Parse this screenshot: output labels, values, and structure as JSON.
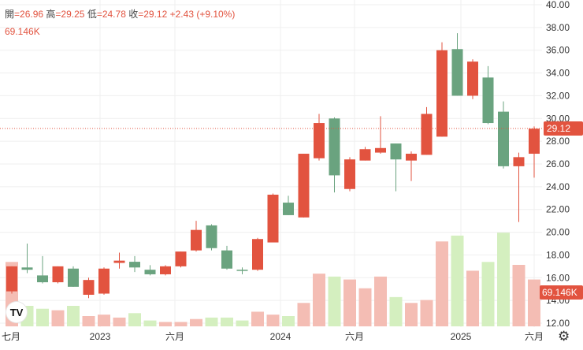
{
  "legend": {
    "open_label": "開",
    "open": "=26.96",
    "high_label": "高",
    "high": "=29.25",
    "low_label": "低",
    "low": "=24.78",
    "close_label": "收",
    "close": "=29.12",
    "change": "+2.43 (+9.10%)",
    "volume": "69.146K"
  },
  "logo_text": "TV",
  "settings_icon": "gear-icon",
  "colors": {
    "up": "#e2533f",
    "down": "#6aa37f",
    "up_vol": "#f4bdb4",
    "down_vol": "#d4efbf",
    "grid": "#efefef"
  },
  "chart_data": {
    "type": "candlestick",
    "price_range": [
      12,
      40
    ],
    "y_ticks": [
      "12.00",
      "14.00",
      "16.00",
      "18.00",
      "20.00",
      "22.00",
      "24.00",
      "26.00",
      "28.00",
      "30.00",
      "32.00",
      "34.00",
      "36.00",
      "38.00",
      "40.00"
    ],
    "x_ticks": [
      "七月",
      "2023",
      "六月",
      "2024",
      "六月",
      "2025",
      "六月"
    ],
    "last_price": "29.12",
    "last_volume": "69.146K",
    "candles": [
      {
        "o": 14.8,
        "h": 17.0,
        "l": 14.6,
        "c": 17.0,
        "v": 22
      },
      {
        "o": 16.9,
        "h": 19.0,
        "l": 16.4,
        "c": 16.7,
        "v": 7
      },
      {
        "o": 16.2,
        "h": 17.9,
        "l": 15.5,
        "c": 15.6,
        "v": 6
      },
      {
        "o": 15.6,
        "h": 17.0,
        "l": 15.5,
        "c": 17.0,
        "v": 5.5
      },
      {
        "o": 16.8,
        "h": 17.0,
        "l": 15.2,
        "c": 15.2,
        "v": 7
      },
      {
        "o": 14.5,
        "h": 16.0,
        "l": 14.2,
        "c": 15.8,
        "v": 3.5
      },
      {
        "o": 14.6,
        "h": 16.9,
        "l": 14.5,
        "c": 16.8,
        "v": 4
      },
      {
        "o": 17.3,
        "h": 18.2,
        "l": 16.8,
        "c": 17.5,
        "v": 3
      },
      {
        "o": 17.4,
        "h": 17.9,
        "l": 16.5,
        "c": 16.9,
        "v": 4.5
      },
      {
        "o": 16.7,
        "h": 17.1,
        "l": 16.2,
        "c": 16.3,
        "v": 2
      },
      {
        "o": 16.3,
        "h": 17.1,
        "l": 16.2,
        "c": 17.0,
        "v": 1.5
      },
      {
        "o": 17.0,
        "h": 18.3,
        "l": 16.9,
        "c": 18.3,
        "v": 1.5
      },
      {
        "o": 18.4,
        "h": 21.0,
        "l": 18.3,
        "c": 20.2,
        "v": 2.5
      },
      {
        "o": 20.6,
        "h": 20.7,
        "l": 18.4,
        "c": 18.6,
        "v": 3
      },
      {
        "o": 18.4,
        "h": 18.8,
        "l": 16.7,
        "c": 16.8,
        "v": 3
      },
      {
        "o": 16.7,
        "h": 16.9,
        "l": 16.3,
        "c": 16.6,
        "v": 2
      },
      {
        "o": 16.7,
        "h": 19.5,
        "l": 16.6,
        "c": 19.4,
        "v": 5
      },
      {
        "o": 19.1,
        "h": 23.4,
        "l": 19.1,
        "c": 23.3,
        "v": 4
      },
      {
        "o": 22.6,
        "h": 23.2,
        "l": 21.5,
        "c": 21.5,
        "v": 3.5
      },
      {
        "o": 21.3,
        "h": 26.9,
        "l": 21.3,
        "c": 26.9,
        "v": 8
      },
      {
        "o": 26.5,
        "h": 30.4,
        "l": 26.3,
        "c": 29.6,
        "v": 18
      },
      {
        "o": 30.0,
        "h": 30.1,
        "l": 23.5,
        "c": 25.0,
        "v": 17
      },
      {
        "o": 23.8,
        "h": 26.6,
        "l": 23.6,
        "c": 26.4,
        "v": 16
      },
      {
        "o": 26.3,
        "h": 27.5,
        "l": 26.3,
        "c": 27.3,
        "v": 13
      },
      {
        "o": 27.0,
        "h": 30.2,
        "l": 26.9,
        "c": 27.4,
        "v": 17
      },
      {
        "o": 27.8,
        "h": 27.8,
        "l": 23.6,
        "c": 26.4,
        "v": 10
      },
      {
        "o": 26.3,
        "h": 27.1,
        "l": 24.5,
        "c": 26.9,
        "v": 8
      },
      {
        "o": 26.8,
        "h": 31.0,
        "l": 26.8,
        "c": 30.4,
        "v": 9
      },
      {
        "o": 28.4,
        "h": 36.7,
        "l": 28.4,
        "c": 36.0,
        "v": 29
      },
      {
        "o": 36.1,
        "h": 37.5,
        "l": 32.0,
        "c": 32.0,
        "v": 31
      },
      {
        "o": 32.0,
        "h": 35.2,
        "l": 31.7,
        "c": 35.0,
        "v": 19
      },
      {
        "o": 33.6,
        "h": 34.6,
        "l": 29.5,
        "c": 29.6,
        "v": 22
      },
      {
        "o": 30.6,
        "h": 31.5,
        "l": 25.6,
        "c": 25.8,
        "v": 32
      },
      {
        "o": 25.8,
        "h": 27.0,
        "l": 20.9,
        "c": 26.6,
        "v": 21
      },
      {
        "o": 26.9,
        "h": 29.3,
        "l": 24.8,
        "c": 29.1,
        "v": 16
      }
    ]
  }
}
